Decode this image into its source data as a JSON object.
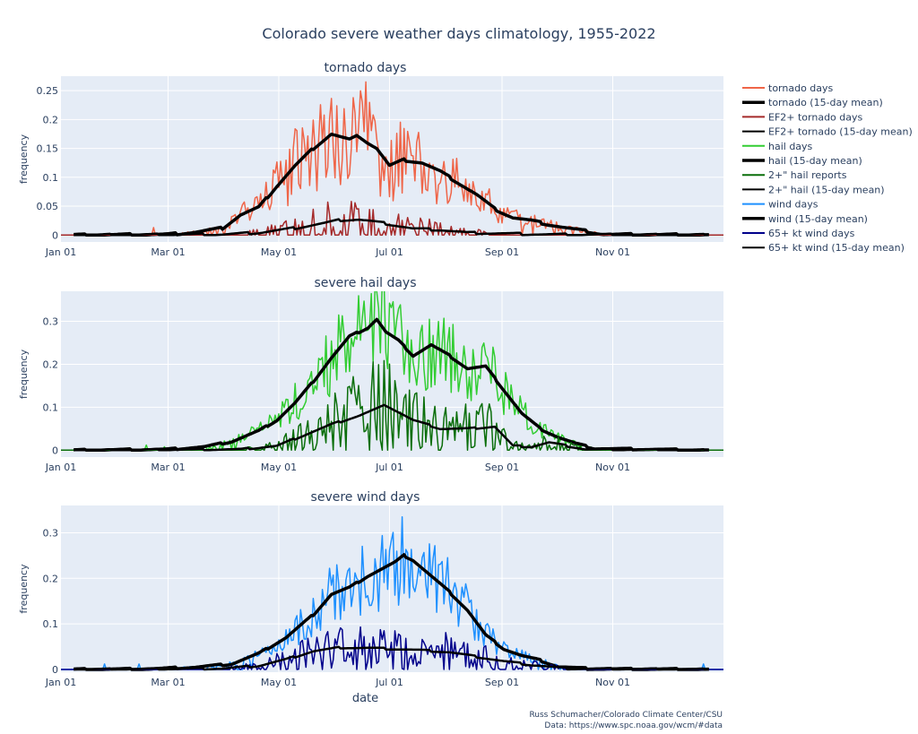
{
  "figure": {
    "title": "Colorado severe weather days climatology, 1955-2022",
    "credit_line1": "Russ Schumacher/Colorado Climate Center/CSU",
    "credit_line2": "Data: https://www.spc.noaa.gov/wcm/#data"
  },
  "chart_data": [
    {
      "type": "line",
      "title": "tornado days",
      "xlabel": "",
      "ylabel": "frequency",
      "x_tick_labels": [
        "Jan 01",
        "Mar 01",
        "May 01",
        "Jul 01",
        "Sep 01",
        "Nov 01"
      ],
      "x_tick_days": [
        1,
        60,
        121,
        182,
        244,
        305
      ],
      "xlim_days": [
        1,
        366
      ],
      "ylim": [
        -0.012,
        0.275
      ],
      "y_ticks": [
        0,
        0.05,
        0.1,
        0.15,
        0.2,
        0.25
      ],
      "y_tick_labels": [
        "0",
        "0.05",
        "0.1",
        "0.15",
        "0.2",
        "0.25"
      ],
      "grid": true,
      "series": [
        {
          "name": "tornado days",
          "color": "#ef6548",
          "width": 1.5,
          "kind": "raw",
          "mean_ref": 1,
          "noise": 0.38,
          "seed": 11,
          "spikes": [
            [
              169,
              0.265
            ],
            [
              52,
              0.013
            ]
          ]
        },
        {
          "name": "tornado (15-day mean)",
          "color": "#000000",
          "width": 3.5,
          "kind": "mean",
          "days": [
            8,
            60,
            75,
            90,
            100,
            110,
            120,
            130,
            140,
            150,
            160,
            165,
            170,
            175,
            182,
            190,
            200,
            210,
            220,
            230,
            240,
            250,
            260,
            270,
            280,
            290,
            300,
            358
          ],
          "values": [
            0,
            0.001,
            0.005,
            0.012,
            0.035,
            0.048,
            0.085,
            0.12,
            0.15,
            0.175,
            0.165,
            0.172,
            0.16,
            0.15,
            0.12,
            0.13,
            0.125,
            0.11,
            0.09,
            0.07,
            0.045,
            0.03,
            0.025,
            0.018,
            0.012,
            0.007,
            0.001,
            0
          ]
        },
        {
          "name": "EF2+ tornado days",
          "color": "#a52a2a",
          "width": 1.5,
          "kind": "raw",
          "mean_ref": 3,
          "noise": 1.3,
          "seed": 23,
          "spikes": [
            [
              148,
              0.057
            ],
            [
              200,
              0.022
            ]
          ]
        },
        {
          "name": "EF2+ tornado (15-day mean)",
          "color": "#000000",
          "width": 2.5,
          "kind": "mean",
          "days": [
            8,
            90,
            110,
            130,
            145,
            155,
            165,
            180,
            195,
            210,
            225,
            240,
            270,
            358
          ],
          "values": [
            0,
            0.001,
            0.004,
            0.012,
            0.02,
            0.026,
            0.027,
            0.02,
            0.011,
            0.009,
            0.004,
            0.003,
            0.001,
            0
          ]
        }
      ]
    },
    {
      "type": "line",
      "title": "severe hail days",
      "xlabel": "",
      "ylabel": "frequency",
      "x_tick_labels": [
        "Jan 01",
        "Mar 01",
        "May 01",
        "Jul 01",
        "Sep 01",
        "Nov 01"
      ],
      "x_tick_days": [
        1,
        60,
        121,
        182,
        244,
        305
      ],
      "xlim_days": [
        1,
        366
      ],
      "ylim": [
        -0.016,
        0.37
      ],
      "y_ticks": [
        0,
        0.1,
        0.2,
        0.3
      ],
      "y_tick_labels": [
        "0",
        "0.1",
        "0.2",
        "0.3"
      ],
      "grid": true,
      "series": [
        {
          "name": "hail days",
          "color": "#32cd32",
          "width": 1.5,
          "kind": "raw",
          "mean_ref": 1,
          "noise": 0.3,
          "seed": 37,
          "spikes": [
            [
              48,
              0.012
            ],
            [
              58,
              0.008
            ]
          ]
        },
        {
          "name": "hail (15-day mean)",
          "color": "#000000",
          "width": 3.5,
          "kind": "mean",
          "days": [
            8,
            60,
            80,
            95,
            110,
            120,
            130,
            140,
            150,
            160,
            170,
            175,
            180,
            187,
            195,
            205,
            215,
            225,
            235,
            245,
            255,
            265,
            275,
            285,
            295,
            358
          ],
          "values": [
            0,
            0.002,
            0.008,
            0.02,
            0.045,
            0.07,
            0.11,
            0.16,
            0.215,
            0.265,
            0.285,
            0.305,
            0.275,
            0.255,
            0.22,
            0.245,
            0.22,
            0.19,
            0.195,
            0.14,
            0.085,
            0.05,
            0.03,
            0.015,
            0.004,
            0
          ]
        },
        {
          "name": "2+\" hail reports",
          "color": "#0a6e0a",
          "width": 1.5,
          "kind": "raw",
          "mean_ref": 3,
          "noise": 0.9,
          "seed": 53,
          "spikes": []
        },
        {
          "name": "2+\" hail (15-day mean)",
          "color": "#000000",
          "width": 2.5,
          "kind": "mean",
          "days": [
            8,
            100,
            120,
            135,
            150,
            165,
            180,
            195,
            210,
            225,
            240,
            250,
            260,
            270,
            290,
            358
          ],
          "values": [
            0,
            0.002,
            0.01,
            0.035,
            0.06,
            0.08,
            0.105,
            0.07,
            0.05,
            0.05,
            0.055,
            0.01,
            0.008,
            0.018,
            0.002,
            0
          ]
        }
      ]
    },
    {
      "type": "line",
      "title": "severe wind days",
      "xlabel": "date",
      "ylabel": "frequency",
      "x_tick_labels": [
        "Jan 01",
        "Mar 01",
        "May 01",
        "Jul 01",
        "Sep 01",
        "Nov 01"
      ],
      "x_tick_days": [
        1,
        60,
        121,
        182,
        244,
        305
      ],
      "xlim_days": [
        1,
        366
      ],
      "ylim": [
        -0.006,
        0.36
      ],
      "y_ticks": [
        0,
        0.1,
        0.2,
        0.3
      ],
      "y_tick_labels": [
        "0",
        "0.1",
        "0.2",
        "0.3"
      ],
      "grid": true,
      "series": [
        {
          "name": "wind days",
          "color": "#1e90ff",
          "width": 1.5,
          "kind": "raw",
          "mean_ref": 1,
          "noise": 0.3,
          "seed": 71,
          "spikes": [
            [
              189,
              0.335
            ],
            [
              25,
              0.012
            ],
            [
              44,
              0.012
            ],
            [
              355,
              0.012
            ]
          ]
        },
        {
          "name": "wind (15-day mean)",
          "color": "#000000",
          "width": 3.5,
          "kind": "mean",
          "days": [
            8,
            50,
            75,
            95,
            110,
            125,
            140,
            150,
            160,
            170,
            180,
            185,
            190,
            195,
            205,
            215,
            225,
            235,
            245,
            255,
            265,
            275,
            290,
            300,
            358
          ],
          "values": [
            0,
            0.001,
            0.005,
            0.012,
            0.035,
            0.07,
            0.12,
            0.165,
            0.18,
            0.205,
            0.225,
            0.235,
            0.25,
            0.24,
            0.205,
            0.17,
            0.13,
            0.075,
            0.045,
            0.03,
            0.02,
            0.006,
            0.002,
            0.001,
            0
          ]
        },
        {
          "name": "65+ kt wind days",
          "color": "#00008b",
          "width": 1.5,
          "kind": "raw",
          "mean_ref": 3,
          "noise": 0.8,
          "seed": 97,
          "spikes": [
            [
              179,
              0.085
            ]
          ]
        },
        {
          "name": "65+ kt wind (15-day mean)",
          "color": "#000000",
          "width": 2.5,
          "kind": "mean",
          "days": [
            8,
            90,
            110,
            125,
            140,
            155,
            170,
            185,
            200,
            215,
            230,
            245,
            260,
            280,
            358
          ],
          "values": [
            0,
            0.002,
            0.008,
            0.022,
            0.04,
            0.048,
            0.047,
            0.045,
            0.042,
            0.038,
            0.028,
            0.018,
            0.01,
            0.002,
            0
          ]
        }
      ]
    }
  ],
  "legend": {
    "placement": "top-right",
    "items": [
      {
        "label": "tornado days",
        "color": "#ef6548",
        "thick": false
      },
      {
        "label": "tornado (15-day mean)",
        "color": "#000000",
        "thick": true
      },
      {
        "label": "EF2+ tornado days",
        "color": "#a52a2a",
        "thick": false
      },
      {
        "label": "EF2+ tornado (15-day mean)",
        "color": "#000000",
        "thick": false
      },
      {
        "label": "hail days",
        "color": "#32cd32",
        "thick": false
      },
      {
        "label": "hail (15-day mean)",
        "color": "#000000",
        "thick": true
      },
      {
        "label": "2+\" hail reports",
        "color": "#0a6e0a",
        "thick": false
      },
      {
        "label": "2+\" hail (15-day mean)",
        "color": "#000000",
        "thick": false
      },
      {
        "label": "wind days",
        "color": "#1e90ff",
        "thick": false
      },
      {
        "label": "wind (15-day mean)",
        "color": "#000000",
        "thick": true
      },
      {
        "label": "65+ kt wind days",
        "color": "#00008b",
        "thick": false
      },
      {
        "label": "65+ kt wind (15-day mean)",
        "color": "#000000",
        "thick": false
      }
    ]
  }
}
